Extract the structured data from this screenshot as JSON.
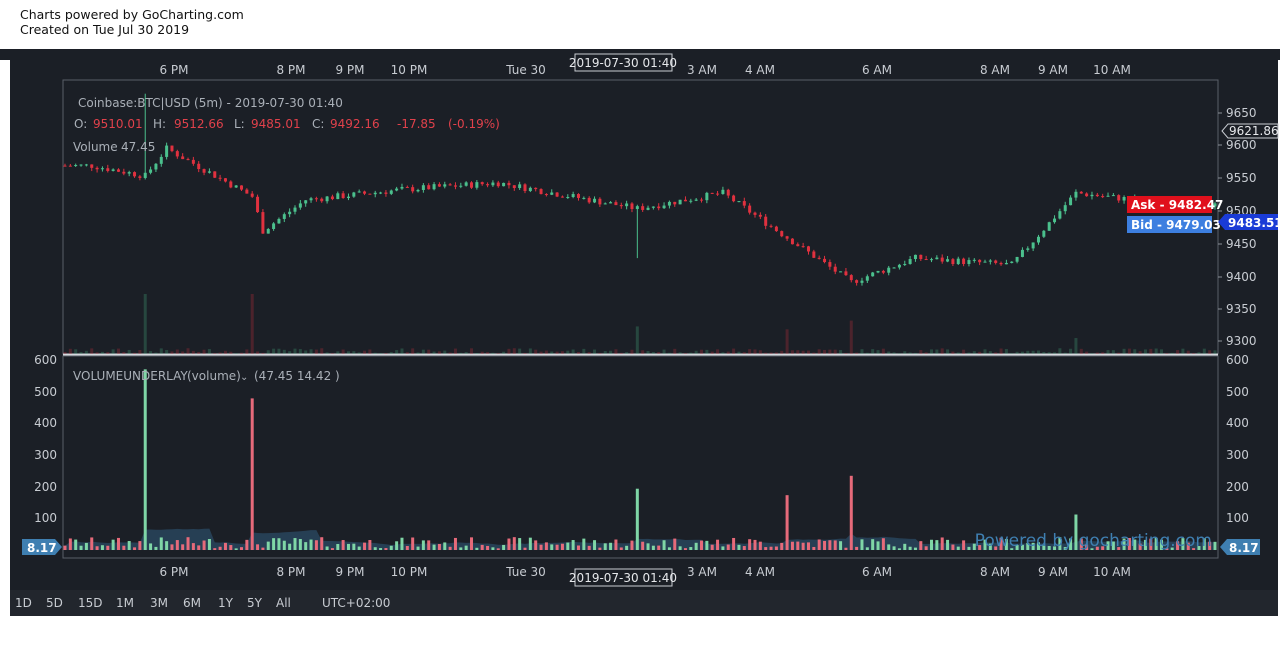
{
  "header": {
    "line1": "Charts powered by GoCharting.com",
    "line2": "Created on Tue Jul 30 2019"
  },
  "legend": {
    "symbol": "Coinbase:BTC|USD (5m) - 2019-07-30 01:40",
    "o_label": "O:",
    "o_value": "9510.01",
    "h_label": "H:",
    "h_value": "9512.66",
    "l_label": "L:",
    "l_value": "9485.01",
    "c_label": "C:",
    "c_value": "9492.16",
    "change": "-17.85",
    "change_pct": "(-0.19%)",
    "volume_label": "Volume",
    "volume_value": "47.45"
  },
  "volume_pane": {
    "title": "VOLUMEUNDERLAY",
    "param": "(volume)",
    "chevron": "⌄",
    "values": "(47.45 14.42 )",
    "watermark": "Powered by gocharting.com"
  },
  "crosshair_time": "2019-07-30 01:40",
  "price_axis": {
    "ticks": [
      "9650",
      "9600",
      "9550",
      "9500",
      "9450",
      "9400",
      "9350",
      "9300"
    ],
    "crosshair_price": "9621.86",
    "last_price": "9483.51",
    "ask": "Ask - 9482.47",
    "bid": "Bid - 9479.03"
  },
  "volume_axis": {
    "ticks": [
      "600",
      "500",
      "400",
      "300",
      "200",
      "100"
    ],
    "marker_left": "8.17",
    "marker_right": "8.17"
  },
  "time_axis": [
    "6 PM",
    "8 PM",
    "9 PM",
    "10 PM",
    "Tue 30",
    "3 AM",
    "4 AM",
    "6 AM",
    "8 AM",
    "9 AM",
    "10 AM"
  ],
  "timeframes": [
    "1D",
    "5D",
    "15D",
    "1M",
    "3M",
    "6M",
    "1Y",
    "5Y",
    "All"
  ],
  "timezone": "UTC+02:00",
  "colors": {
    "background": "#1b1f26",
    "up": "#4bc08d",
    "down": "#e0313f",
    "axis_text": "#c8ccd2",
    "legend_red": "#e0414b",
    "ask_bg": "#e0101c",
    "bid_bg": "#3d7fe0",
    "last_bg": "#1a3bd6",
    "marker_bg": "#3f7fb1",
    "watermark": "#3f7fb1"
  },
  "chart_data": {
    "type": "candlestick",
    "interval": "5m",
    "price_range": [
      9280,
      9680
    ],
    "volume_range": [
      0,
      620
    ],
    "key_points": [
      {
        "t": "17:10",
        "price": 9555
      },
      {
        "t": "18:00",
        "price": 9540,
        "high": 9660,
        "volume_peak": 560
      },
      {
        "t": "18:20",
        "price": 9580
      },
      {
        "t": "19:40",
        "price": 9510,
        "volume_peak": 470
      },
      {
        "t": "19:50",
        "price": 9460
      },
      {
        "t": "20:30",
        "price": 9505
      },
      {
        "t": "22:00",
        "price": 9520
      },
      {
        "t": "23:30",
        "price": 9530
      },
      {
        "t": "01:40",
        "price": 9492.16,
        "low": 9420,
        "volume_peak": 190
      },
      {
        "t": "03:00",
        "price": 9515
      },
      {
        "t": "04:00",
        "price": 9450,
        "volume_peak": 170
      },
      {
        "t": "05:00",
        "price": 9385,
        "volume_peak": 230
      },
      {
        "t": "06:00",
        "price": 9420
      },
      {
        "t": "07:30",
        "price": 9410
      },
      {
        "t": "08:30",
        "price": 9515,
        "volume_peak": 110
      },
      {
        "t": "10:20",
        "price": 9495
      }
    ]
  }
}
